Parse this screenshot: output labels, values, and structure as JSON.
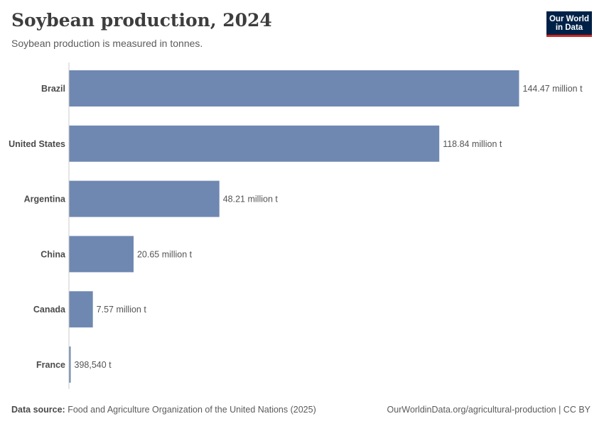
{
  "header": {
    "title": "Soybean production, 2024",
    "subtitle": "Soybean production is measured in tonnes."
  },
  "logo": {
    "line1": "Our World",
    "line2": "in Data"
  },
  "footer": {
    "source_label": "Data source:",
    "source_text": "Food and Agriculture Organization of the United Nations (2025)",
    "url_text": "OurWorldinData.org/agricultural-production | CC BY"
  },
  "colors": {
    "bar": "#6f88b1",
    "axis": "#cccccc"
  },
  "chart_data": {
    "type": "bar",
    "orientation": "horizontal",
    "title": "Soybean production, 2024",
    "unit": "tonnes",
    "categories": [
      "Brazil",
      "United States",
      "Argentina",
      "China",
      "Canada",
      "France"
    ],
    "values": [
      144470000,
      118840000,
      48210000,
      20650000,
      7570000,
      398540
    ],
    "value_labels": [
      "144.47 million t",
      "118.84 million t",
      "48.21 million t",
      "20.65 million t",
      "7.57 million t",
      "398,540 t"
    ],
    "xlim": [
      0,
      144470000
    ]
  }
}
